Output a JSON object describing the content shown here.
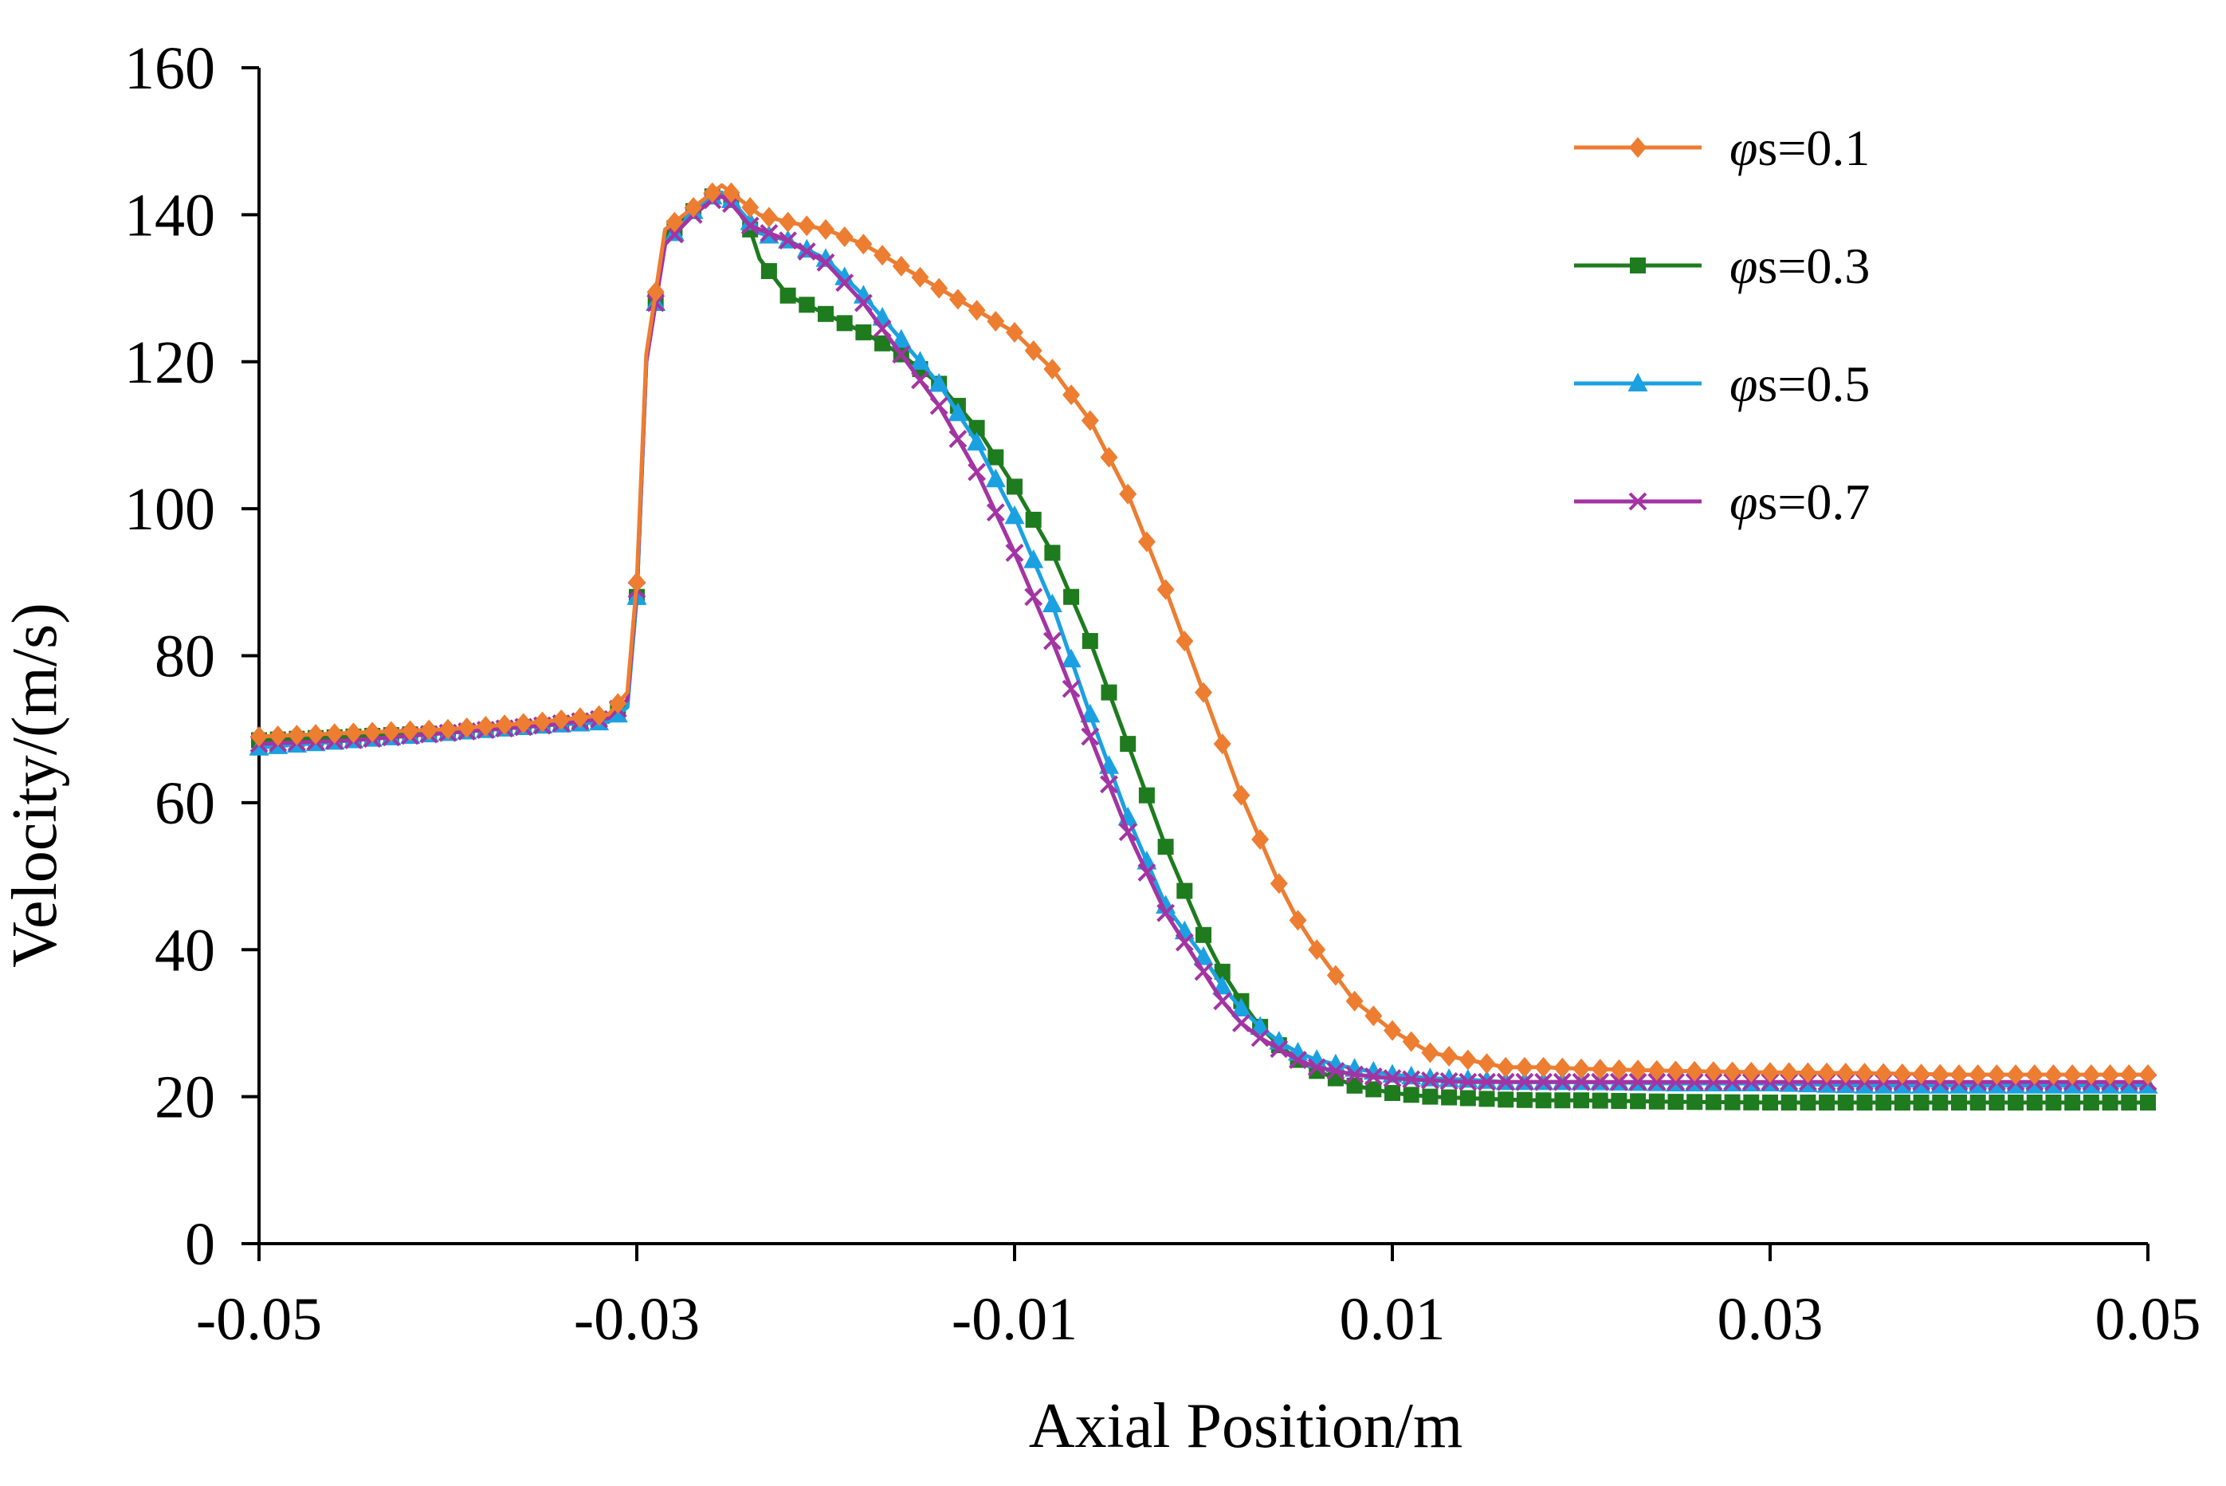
{
  "chart_data": {
    "type": "line",
    "title": "",
    "xlabel": "Axial Position/m",
    "ylabel": "Velocity/(m/s)",
    "xlim": [
      -0.05,
      0.05
    ],
    "ylim": [
      0,
      160
    ],
    "xticks": [
      -0.05,
      -0.03,
      -0.01,
      0.01,
      0.03,
      0.05
    ],
    "xtick_labels": [
      "-0.05",
      "-0.03",
      "-0.01",
      "0.01",
      "0.03",
      "0.05"
    ],
    "yticks": [
      0,
      20,
      40,
      60,
      80,
      100,
      120,
      140,
      160
    ],
    "ytick_labels": [
      "0",
      "20",
      "40",
      "60",
      "80",
      "100",
      "120",
      "140",
      "160"
    ],
    "grid": false,
    "legend_position": "top-right",
    "x": [
      -0.05,
      -0.045,
      -0.04,
      -0.035,
      -0.0315,
      -0.0305,
      -0.03,
      -0.0295,
      -0.0285,
      -0.027,
      -0.026,
      -0.0255,
      -0.025,
      -0.024,
      -0.0235,
      -0.022,
      -0.02,
      -0.018,
      -0.016,
      -0.014,
      -0.012,
      -0.01,
      -0.008,
      -0.006,
      -0.004,
      -0.002,
      0.0,
      0.001,
      0.002,
      0.003,
      0.004,
      0.005,
      0.006,
      0.008,
      0.01,
      0.012,
      0.014,
      0.016,
      0.018,
      0.02,
      0.025,
      0.03,
      0.035,
      0.04,
      0.045,
      0.05
    ],
    "series": [
      {
        "name": "φs=0.1",
        "legend_symbol": "φ",
        "legend_suffix": "s=0.1",
        "color": "#ED7D31",
        "marker": "diamond",
        "values": [
          69,
          69.5,
          70,
          71,
          72,
          75,
          90,
          121,
          138,
          141,
          143,
          144,
          143,
          141,
          140,
          139,
          138,
          136,
          133,
          130,
          127,
          124,
          119,
          112,
          102,
          89,
          75,
          68,
          61,
          55,
          49,
          44,
          40,
          33,
          29,
          26,
          25,
          24,
          24,
          23.8,
          23.5,
          23.3,
          23.2,
          23,
          23,
          23
        ]
      },
      {
        "name": "φs=0.3",
        "legend_symbol": "φ",
        "legend_suffix": "s=0.3",
        "color": "#1E7B1E",
        "marker": "square",
        "values": [
          68.5,
          69,
          69.5,
          70.5,
          71.5,
          74,
          88,
          120,
          137,
          140.5,
          142.5,
          143,
          142,
          138,
          134,
          129,
          126.5,
          124,
          121,
          117,
          111,
          103,
          94,
          82,
          68,
          54,
          42,
          37,
          33,
          29.5,
          27,
          25,
          23.5,
          21.5,
          20.5,
          20,
          19.8,
          19.6,
          19.5,
          19.5,
          19.3,
          19.2,
          19.2,
          19.2,
          19.2,
          19.2
        ]
      },
      {
        "name": "φs=0.5",
        "legend_symbol": "φ",
        "legend_suffix": "s=0.5",
        "color": "#1BA1E2",
        "marker": "triangle",
        "values": [
          67.5,
          68.5,
          69.5,
          70.5,
          71,
          73,
          88,
          120,
          136,
          140.5,
          142.5,
          143,
          142,
          139,
          137.5,
          136.5,
          134,
          129,
          123,
          117,
          109,
          99,
          87,
          72,
          58,
          46,
          39,
          35,
          32,
          29.5,
          27.5,
          26,
          25,
          23.8,
          23,
          22.5,
          22.3,
          22,
          22,
          22,
          21.8,
          21.8,
          21.5,
          21.5,
          21.5,
          21.5
        ]
      },
      {
        "name": "φs=0.7",
        "legend_symbol": "φ",
        "legend_suffix": "s=0.7",
        "color": "#A334A3",
        "marker": "x",
        "values": [
          68,
          68.5,
          69.5,
          70.5,
          71.5,
          74,
          89,
          120,
          136,
          140,
          142,
          142.5,
          141.5,
          138.5,
          138,
          136.5,
          133.5,
          128,
          121,
          114,
          105,
          94,
          82,
          69,
          56,
          45,
          37,
          33,
          30,
          28,
          26.5,
          25,
          24,
          23,
          22.5,
          22.2,
          22,
          22,
          22,
          22,
          22,
          22,
          22,
          22,
          22,
          22
        ]
      }
    ]
  }
}
